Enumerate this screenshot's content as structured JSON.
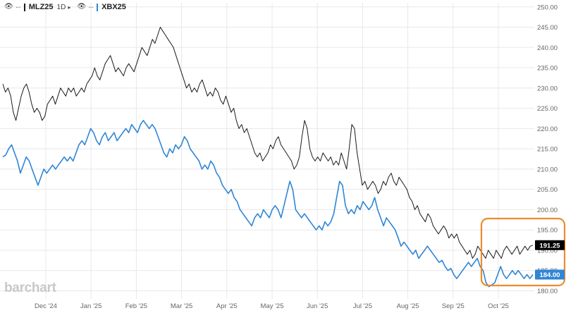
{
  "legend": {
    "series1_symbol": "MLZ25",
    "series1_interval": "1D",
    "series2_symbol": "XBX25",
    "eye_icon": "eye-icon",
    "more_icon": "more-dots-icon"
  },
  "watermark": "barchart",
  "colors": {
    "series1": "#1a1a1a",
    "series2": "#2f86d6",
    "grid": "#e8e8e8",
    "highlight": "#f08a2c",
    "badge1": "#000000",
    "badge2": "#2f86d6"
  },
  "chart_data": {
    "type": "line",
    "x_axis_labels": [
      "Dec '24",
      "Jan '25",
      "Feb '25",
      "Mar '25",
      "Apr '25",
      "May '25",
      "Jun '25",
      "Jul '25",
      "Aug '25",
      "Sep '25",
      "Oct '25"
    ],
    "y_ticks": [
      "250.00",
      "245.00",
      "240.00",
      "235.00",
      "230.00",
      "225.00",
      "220.00",
      "215.00",
      "210.00",
      "205.00",
      "200.00",
      "195.00",
      "190.00",
      "185.00",
      "180.00"
    ],
    "ylim": [
      178,
      251
    ],
    "grid": true,
    "last_values": [
      "191.25",
      "184.00"
    ],
    "annotation": "orange rounded box highlighting October 2025",
    "series": [
      {
        "name": "MLZ25",
        "color": "#1a1a1a",
        "values": [
          231,
          229,
          230,
          228,
          224,
          222,
          225,
          228,
          230,
          231,
          229,
          226,
          224,
          225,
          224,
          222,
          223,
          226,
          227,
          228,
          226,
          228,
          230,
          229,
          228,
          230,
          229,
          230,
          228,
          229,
          230,
          229,
          231,
          232,
          233,
          235,
          233,
          232,
          234,
          236,
          237,
          238,
          236,
          234,
          235,
          234,
          233,
          235,
          236,
          235,
          234,
          236,
          238,
          240,
          239,
          238,
          240,
          242,
          241,
          243,
          245,
          244,
          243,
          242,
          241,
          240,
          238,
          236,
          234,
          232,
          230,
          231,
          229,
          230,
          229,
          231,
          232,
          230,
          228,
          229,
          228,
          230,
          229,
          227,
          226,
          228,
          226,
          224,
          225,
          222,
          220,
          221,
          219,
          220,
          218,
          216,
          214,
          213,
          214,
          212,
          213,
          214,
          216,
          215,
          217,
          218,
          216,
          215,
          214,
          213,
          212,
          210,
          211,
          213,
          218,
          222,
          220,
          215,
          213,
          212,
          213,
          212,
          214,
          213,
          212,
          213,
          211,
          212,
          211,
          214,
          212,
          210,
          215,
          221,
          220,
          214,
          210,
          206,
          207,
          205,
          206,
          207,
          206,
          204,
          205,
          207,
          206,
          208,
          209,
          207,
          206,
          208,
          207,
          206,
          205,
          203,
          202,
          200,
          201,
          199,
          198,
          197,
          199,
          198,
          196,
          195,
          194,
          195,
          196,
          195,
          193,
          194,
          193,
          194,
          192,
          191,
          190,
          189,
          190,
          188,
          189,
          191,
          190,
          189,
          188,
          190,
          189,
          188,
          190,
          189,
          188,
          190,
          191,
          190,
          189,
          190,
          191,
          189,
          190,
          191,
          190,
          191,
          191.25
        ]
      },
      {
        "name": "XBX25",
        "color": "#2f86d6",
        "values": [
          213,
          213.5,
          215,
          216,
          214,
          212,
          209,
          211,
          213,
          212,
          210,
          208,
          206,
          208,
          210,
          209,
          210,
          211,
          210,
          211,
          212,
          213,
          212,
          213,
          212,
          214,
          216,
          217,
          216,
          218,
          220,
          219,
          217,
          216,
          218,
          219,
          217,
          218,
          219,
          217,
          218,
          219,
          220,
          219,
          221,
          220,
          219,
          221,
          222,
          221,
          220,
          221,
          220,
          218,
          216,
          214,
          213,
          215,
          214,
          216,
          215,
          216,
          218,
          217,
          215,
          214,
          213,
          212,
          210,
          211,
          210,
          212,
          211,
          209,
          208,
          206,
          205,
          204,
          205,
          203,
          202,
          200,
          199,
          198,
          197,
          196,
          198,
          199,
          198,
          200,
          199,
          198,
          200,
          201,
          200,
          198,
          201,
          204,
          207,
          205,
          200,
          199,
          198,
          199,
          198,
          197,
          196,
          195,
          196,
          195,
          197,
          196,
          197,
          199,
          203,
          207,
          206,
          201,
          199,
          200,
          199,
          201,
          200,
          202,
          201,
          200,
          201,
          203,
          200,
          198,
          196,
          198,
          197,
          196,
          195,
          193,
          191,
          192,
          191,
          190,
          189,
          190,
          188,
          189,
          190,
          191,
          190,
          189,
          188,
          187,
          187.5,
          186,
          185,
          185.5,
          184,
          183,
          184,
          185,
          186,
          187,
          186,
          187,
          188,
          186,
          185,
          182,
          181,
          181.5,
          182,
          184,
          186,
          184,
          183,
          184,
          185,
          184,
          185,
          184,
          183,
          184,
          183,
          184
        ]
      }
    ]
  }
}
